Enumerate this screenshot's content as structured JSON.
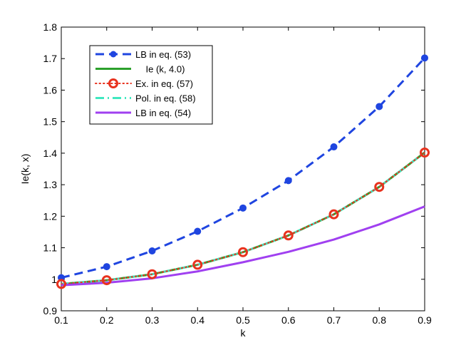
{
  "chart_data": {
    "type": "line",
    "xlabel": "k",
    "ylabel": "Ie(k, x)",
    "xlim": [
      0.1,
      0.9
    ],
    "ylim": [
      0.9,
      1.8
    ],
    "xticks": [
      "0.1",
      "0.2",
      "0.3",
      "0.4",
      "0.5",
      "0.6",
      "0.7",
      "0.8",
      "0.9"
    ],
    "yticks": [
      "0.9",
      "1",
      "1.1",
      "1.2",
      "1.3",
      "1.4",
      "1.5",
      "1.6",
      "1.7",
      "1.8"
    ],
    "grid": false,
    "legend_position": "top-left",
    "x": [
      0.1,
      0.2,
      0.3,
      0.4,
      0.5,
      0.6,
      0.7,
      0.8,
      0.9
    ],
    "series": [
      {
        "name": "LB in eq. (53)",
        "color": "#1f45e0",
        "line_style": "dashed",
        "marker": "filled-circle",
        "values": [
          1.005,
          1.04,
          1.09,
          1.152,
          1.226,
          1.313,
          1.42,
          1.548,
          1.702
        ]
      },
      {
        "name": "Ie (k, 4.0)",
        "color": "#2ca02c",
        "line_style": "solid",
        "marker": "none",
        "values": [
          0.985,
          0.997,
          1.016,
          1.046,
          1.086,
          1.139,
          1.206,
          1.293,
          1.402
        ]
      },
      {
        "name": "Ex. in eq. (57)",
        "color": "#e8321e",
        "line_style": "dotted",
        "marker": "open-circle",
        "values": [
          0.985,
          0.997,
          1.016,
          1.046,
          1.086,
          1.139,
          1.206,
          1.293,
          1.402
        ]
      },
      {
        "name": "Pol. in eq. (58)",
        "color": "#40e8c0",
        "line_style": "dash-dot",
        "marker": "none",
        "values": [
          0.985,
          0.997,
          1.016,
          1.046,
          1.086,
          1.139,
          1.206,
          1.293,
          1.402
        ]
      },
      {
        "name": "LB in eq. (54)",
        "color": "#a040f0",
        "line_style": "solid",
        "marker": "none",
        "values": [
          0.981,
          0.989,
          1.003,
          1.025,
          1.054,
          1.087,
          1.126,
          1.174,
          1.231
        ]
      }
    ]
  }
}
